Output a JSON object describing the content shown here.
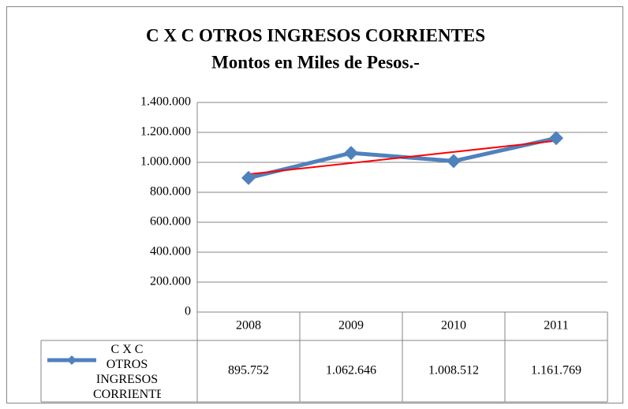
{
  "chart_data": {
    "type": "line",
    "title": "C X C OTROS INGRESOS CORRIENTES",
    "subtitle": "Montos en Miles de Pesos.-",
    "categories": [
      "2008",
      "2009",
      "2010",
      "2011"
    ],
    "series": [
      {
        "name": "C X C OTROS INGRESOS CORRIENTES",
        "color": "#4f81bd",
        "values": [
          895752,
          1062646,
          1008512,
          1161769
        ],
        "value_labels": [
          "895.752",
          "1.062.646",
          "1.008.512",
          "1.161.769"
        ]
      }
    ],
    "trendline": {
      "type": "linear",
      "color": "#ff0000"
    },
    "ylim": [
      0,
      1400000
    ],
    "yticks": [
      0,
      {
        "value": 200000,
        "label": "200.000"
      },
      {
        "value": 400000,
        "label": "400.000"
      },
      {
        "value": 600000,
        "label": "600.000"
      },
      {
        "value": 800000,
        "label": "800.000"
      },
      {
        "value": 1000000,
        "label": "1.000.000"
      },
      {
        "value": 1200000,
        "label": "1.200.000"
      },
      {
        "value": 1400000,
        "label": "1.400.000"
      }
    ],
    "grid": true,
    "data_table": true
  }
}
